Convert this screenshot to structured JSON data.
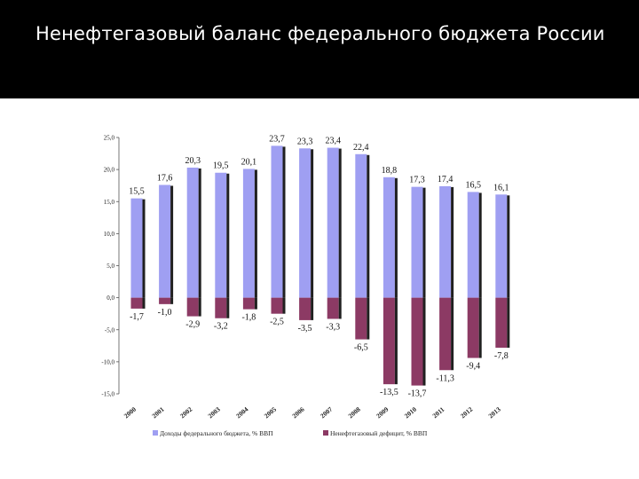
{
  "slide": {
    "title": "Ненефтегазовый баланс федерального бюджета России"
  },
  "colors": {
    "background": "#000000",
    "chart_background": "#ffffff",
    "revenue": "#9f9ff2",
    "deficit": "#8c3a64",
    "bar_shadow": "#202020"
  },
  "chart_data": {
    "type": "bar",
    "title": "",
    "xlabel": "",
    "ylabel": "",
    "ylim": [
      -15,
      25
    ],
    "y_ticks": [
      "25,0",
      "20,0",
      "15,0",
      "10,0",
      "5,0",
      "0,0",
      "-5,0",
      "-10,0",
      "-15,0"
    ],
    "categories": [
      "2000",
      "2001",
      "2002",
      "2003",
      "2004",
      "2005",
      "2006",
      "2007",
      "2008",
      "2009",
      "2010",
      "2011",
      "2012",
      "2013"
    ],
    "series": [
      {
        "name": "Доходы федерального бюджета, % ВВП",
        "values": [
          15.5,
          17.6,
          20.3,
          19.5,
          20.1,
          23.7,
          23.3,
          23.4,
          22.4,
          18.8,
          17.3,
          17.4,
          16.5,
          16.1
        ],
        "labels": [
          "15,5",
          "17,6",
          "20,3",
          "19,5",
          "20,1",
          "23,7",
          "23,3",
          "23,4",
          "22,4",
          "18,8",
          "17,3",
          "17,4",
          "16,5",
          "16,1"
        ]
      },
      {
        "name": "Ненефтегазовый дефицит, % ВВП",
        "values": [
          -1.7,
          -1.0,
          -2.9,
          -3.2,
          -1.8,
          -2.5,
          -3.5,
          -3.3,
          -6.5,
          -13.5,
          -13.7,
          -11.3,
          -9.4,
          -7.8
        ],
        "labels": [
          "-1,7",
          "-1,0",
          "-2,9",
          "-3,2",
          "-1,8",
          "-2,5",
          "-3,5",
          "-3,3",
          "-6,5",
          "-13,5",
          "-13,7",
          "-11,3",
          "-9,4",
          "-7,8"
        ]
      }
    ],
    "grid": false,
    "legend_position": "bottom"
  }
}
